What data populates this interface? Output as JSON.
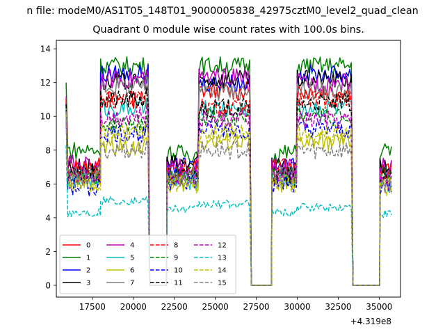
{
  "figure": {
    "suptitle": "n file: modeM0/AS1T05_148T01_9000005838_42975cztM0_level2_quad_clean",
    "title": "Quadrant 0 module wise count rates with 100.0s bins."
  },
  "chart_data": {
    "type": "line",
    "title": "Quadrant 0 module wise count rates with 100.0s bins.",
    "xlabel": "",
    "ylabel": "",
    "x_offset_label": "+4.319e8",
    "xlim": [
      15300,
      36300
    ],
    "ylim": [
      -0.7,
      14.5
    ],
    "xticks": [
      17500,
      20000,
      22500,
      25000,
      27500,
      30000,
      32500,
      35000
    ],
    "xtick_labels": [
      "17500",
      "20000",
      "22500",
      "25000",
      "27500",
      "30000",
      "32500",
      "35000"
    ],
    "yticks": [
      0,
      2,
      4,
      6,
      8,
      10,
      12,
      14
    ],
    "ytick_labels": [
      "0",
      "2",
      "4",
      "6",
      "8",
      "10",
      "12",
      "14"
    ],
    "grid": false,
    "legend_position": "lower-left",
    "legend_columns": 4,
    "gaps_x": [
      [
        20950,
        22050
      ],
      [
        27150,
        28450
      ],
      [
        33350,
        35050
      ]
    ],
    "segment_levels_order": "x ranges: [15900,20950], [22050,27150], [28450,33350], [35050,35800]",
    "series": [
      {
        "name": "0",
        "color": "#ff0000",
        "dash": "solid",
        "levels": [
          7.0,
          11.0,
          6.5,
          11.5,
          6.5,
          11.5,
          6.8
        ]
      },
      {
        "name": "1",
        "color": "#008000",
        "dash": "solid",
        "levels": [
          8.0,
          13.0,
          7.8,
          13.0,
          7.8,
          13.0,
          8.0
        ]
      },
      {
        "name": "2",
        "color": "#0000ff",
        "dash": "solid",
        "levels": [
          6.5,
          12.5,
          7.0,
          12.0,
          7.0,
          12.5,
          6.5
        ]
      },
      {
        "name": "3",
        "color": "#000000",
        "dash": "solid",
        "levels": [
          7.0,
          12.0,
          7.2,
          12.2,
          7.0,
          12.2,
          7.0
        ]
      },
      {
        "name": "4",
        "color": "#bf00bf",
        "dash": "solid",
        "levels": [
          7.2,
          12.2,
          7.0,
          12.3,
          7.0,
          12.0,
          7.0
        ]
      },
      {
        "name": "5",
        "color": "#00bfbf",
        "dash": "solid",
        "levels": [
          6.3,
          10.5,
          6.2,
          10.5,
          6.3,
          10.5,
          6.0
        ]
      },
      {
        "name": "6",
        "color": "#bfbf00",
        "dash": "solid",
        "levels": [
          6.2,
          8.2,
          6.0,
          8.5,
          6.0,
          8.5,
          6.0
        ]
      },
      {
        "name": "7",
        "color": "#808080",
        "dash": "solid",
        "levels": [
          6.4,
          11.8,
          6.6,
          11.5,
          6.5,
          11.5,
          6.3
        ]
      },
      {
        "name": "8",
        "color": "#ff0000",
        "dash": "dashed",
        "levels": [
          6.8,
          11.0,
          7.0,
          10.5,
          7.0,
          11.0,
          6.5
        ]
      },
      {
        "name": "9",
        "color": "#008000",
        "dash": "dashed",
        "levels": [
          6.5,
          9.5,
          6.5,
          10.0,
          6.5,
          10.0,
          6.5
        ]
      },
      {
        "name": "10",
        "color": "#0000ff",
        "dash": "dashed",
        "levels": [
          5.8,
          9.0,
          6.2,
          9.2,
          6.0,
          9.2,
          5.8
        ]
      },
      {
        "name": "11",
        "color": "#000000",
        "dash": "dashed",
        "levels": [
          6.5,
          11.0,
          6.5,
          10.5,
          6.5,
          10.8,
          6.2
        ]
      },
      {
        "name": "12",
        "color": "#bf00bf",
        "dash": "dashed",
        "levels": [
          6.5,
          10.0,
          6.5,
          9.8,
          6.5,
          9.8,
          6.2
        ]
      },
      {
        "name": "13",
        "color": "#00bfbf",
        "dash": "dashed",
        "levels": [
          4.3,
          5.0,
          4.5,
          4.8,
          4.3,
          4.6,
          4.2
        ]
      },
      {
        "name": "14",
        "color": "#bfbf00",
        "dash": "dashed",
        "levels": [
          6.0,
          9.0,
          6.0,
          9.0,
          6.0,
          9.0,
          5.8
        ]
      },
      {
        "name": "15",
        "color": "#808080",
        "dash": "dashed",
        "levels": [
          6.5,
          8.0,
          6.3,
          8.0,
          6.5,
          8.0,
          6.0
        ]
      }
    ]
  }
}
